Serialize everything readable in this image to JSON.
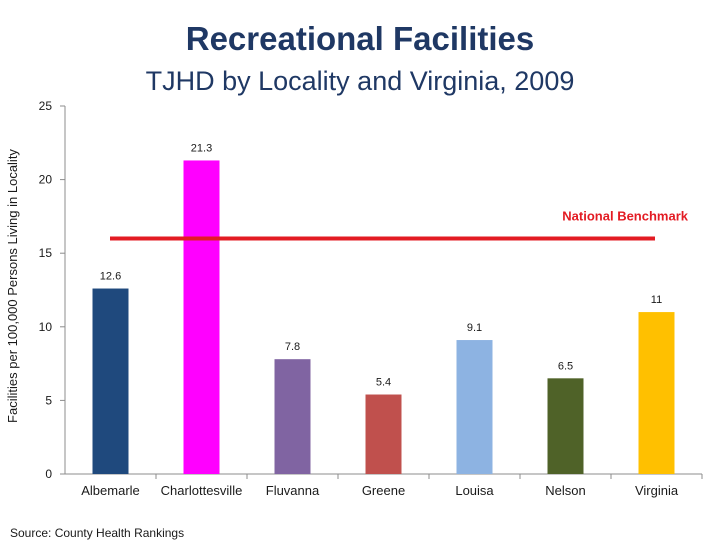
{
  "header": {
    "title": "Recreational Facilities",
    "subtitle": "TJHD by Locality and Virginia, 2009"
  },
  "source": "Source: County Health Rankings",
  "chart_data": {
    "type": "bar",
    "title": "Recreational Facilities",
    "subtitle": "TJHD by Locality and Virginia, 2009",
    "ylabel": "Facilities per 100,000 Persons Living in Locality",
    "xlabel": "",
    "categories": [
      "Albemarle",
      "Charlottesville",
      "Fluvanna",
      "Greene",
      "Louisa",
      "Nelson",
      "Virginia"
    ],
    "values": [
      12.6,
      21.3,
      7.8,
      5.4,
      9.1,
      6.5,
      11
    ],
    "value_labels": [
      "12.6",
      "21.3",
      "7.8",
      "5.4",
      "9.1",
      "6.5",
      "11"
    ],
    "colors": [
      "#1f497d",
      "#ff00ff",
      "#8064a2",
      "#c0504d",
      "#8db3e2",
      "#4f6228",
      "#ffc000"
    ],
    "ylim": [
      0,
      25
    ],
    "yticks": [
      0,
      5,
      10,
      15,
      20,
      25
    ],
    "grid": false,
    "benchmark": {
      "label": "National Benchmark",
      "value": 16,
      "color": "#e31b23"
    }
  }
}
